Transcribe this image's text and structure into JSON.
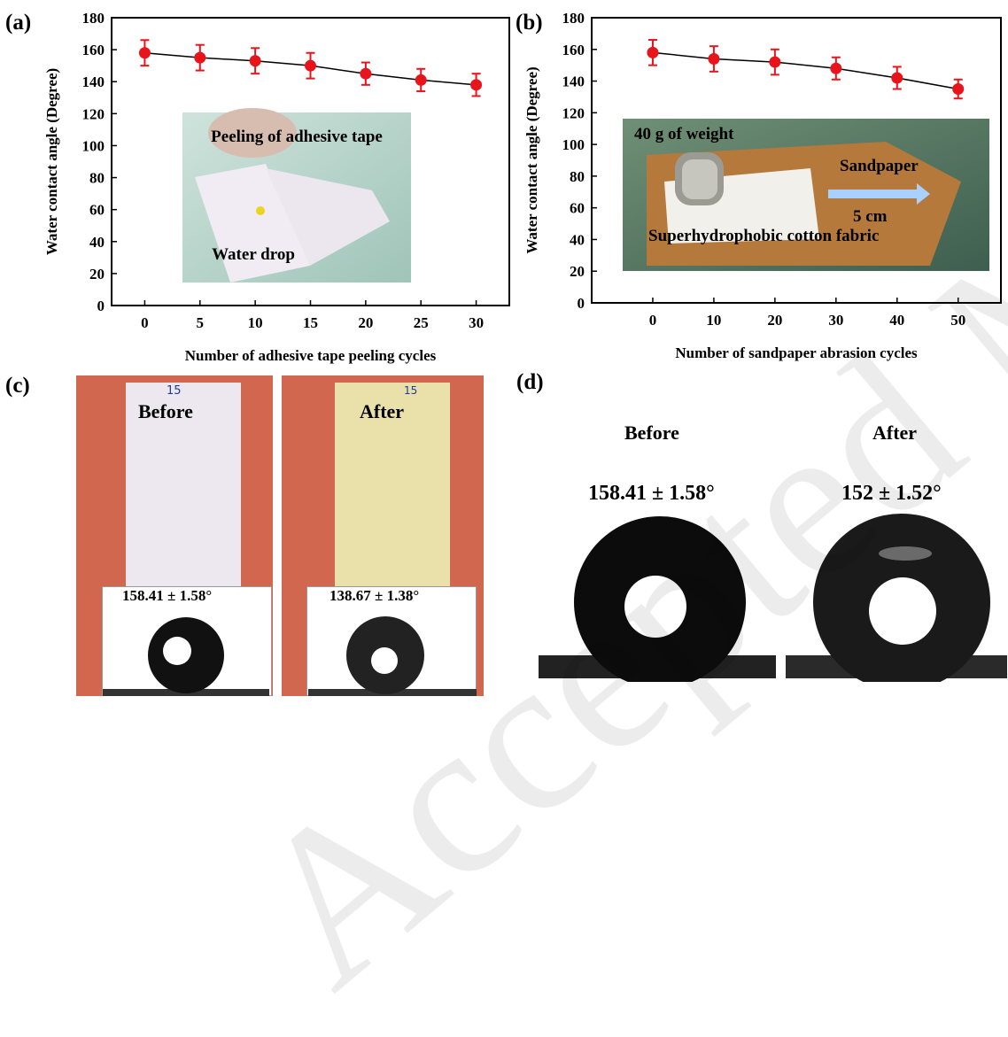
{
  "panels": {
    "a": {
      "label": "(a)"
    },
    "b": {
      "label": "(b)"
    },
    "c": {
      "label": "(c)",
      "before": "Before",
      "after": "After",
      "before_angle": "158.41 ± 1.58°",
      "after_angle": "138.67 ± 1.38°",
      "tag_before": "15",
      "tag_after": "15"
    },
    "d": {
      "label": "(d)",
      "before": "Before",
      "after": "After",
      "before_angle": "158.41 ± 1.58°",
      "after_angle": "152 ± 1.52°"
    }
  },
  "insets": {
    "a": {
      "top": "Peeling of adhesive tape",
      "bottom": "Water drop"
    },
    "b": {
      "weight": "40 g of weight",
      "sandpaper": "Sandpaper",
      "distance": "5 cm",
      "fabric": "Superhydrophobic cotton fabric"
    }
  },
  "watermark": "Accepted Manuscript",
  "colors": {
    "marker": "#e8141b",
    "line": "#000000"
  },
  "chart_data": [
    {
      "type": "line",
      "x": [
        0,
        5,
        10,
        15,
        20,
        25,
        30
      ],
      "y": [
        158,
        155,
        153,
        150,
        145,
        141,
        138
      ],
      "yerr": [
        8,
        8,
        8,
        8,
        7,
        7,
        7
      ],
      "xlabel": "Number of adhesive tape peeling cycles",
      "ylabel": "Water contact angle (Degree)",
      "xlim": [
        -3,
        33
      ],
      "ylim": [
        0,
        180
      ],
      "xticks": [
        0,
        5,
        10,
        15,
        20,
        25,
        30
      ],
      "yticks": [
        0,
        20,
        40,
        60,
        80,
        100,
        120,
        140,
        160,
        180
      ]
    },
    {
      "type": "line",
      "x": [
        0,
        10,
        20,
        30,
        40,
        50
      ],
      "y": [
        158,
        154,
        152,
        148,
        142,
        135
      ],
      "yerr": [
        8,
        8,
        8,
        7,
        7,
        6
      ],
      "xlabel": "Number of sandpaper abrasion cycles",
      "ylabel": "Water contact angle (Degree)",
      "xlim": [
        -10,
        57
      ],
      "ylim": [
        0,
        180
      ],
      "xticks": [
        0,
        10,
        20,
        30,
        40,
        50
      ],
      "yticks": [
        0,
        20,
        40,
        60,
        80,
        100,
        120,
        140,
        160,
        180
      ]
    }
  ]
}
